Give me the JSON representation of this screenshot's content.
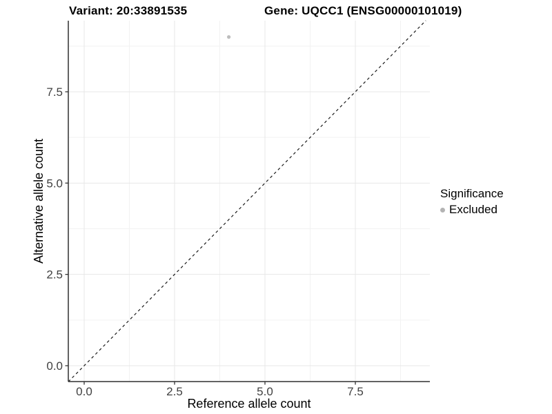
{
  "chart_data": {
    "type": "scatter",
    "variant_title": "Variant: 20:33891535",
    "gene_title": "Gene: UQCC1 (ENSG00000101019)",
    "xlabel": "Reference allele count",
    "ylabel": "Alternative allele count",
    "x_tick_values": [
      0.0,
      2.5,
      5.0,
      7.5
    ],
    "x_tick_labels": [
      "0.0",
      "2.5",
      "5.0",
      "7.5"
    ],
    "y_tick_values": [
      0.0,
      2.5,
      5.0,
      7.5
    ],
    "y_tick_labels": [
      "0.0",
      "2.5",
      "5.0",
      "7.5"
    ],
    "xlim": [
      -0.44,
      9.56
    ],
    "ylim": [
      -0.44,
      9.45
    ],
    "minor_tick_step": 1.25,
    "grid": "major-and-minor",
    "points": [
      {
        "x": 4,
        "y": 9,
        "series": "Excluded",
        "color": "#bdbdbd",
        "radius": 2.6
      }
    ],
    "reference_line": {
      "type": "identity-diagonal",
      "style": "dashed",
      "color": "#1a1a1a"
    },
    "legend": {
      "title": "Significance",
      "position": "right",
      "items": [
        {
          "label": "Excluded",
          "color": "#b3b3b3"
        }
      ]
    },
    "colors": {
      "background": "#ffffff",
      "axis_line": "#2f2f2f",
      "tick_mark": "#333333",
      "tick_label": "#404040",
      "grid_major": "#e7e7e7",
      "grid_minor": "#f2f2f2",
      "title_text": "#000000"
    }
  }
}
